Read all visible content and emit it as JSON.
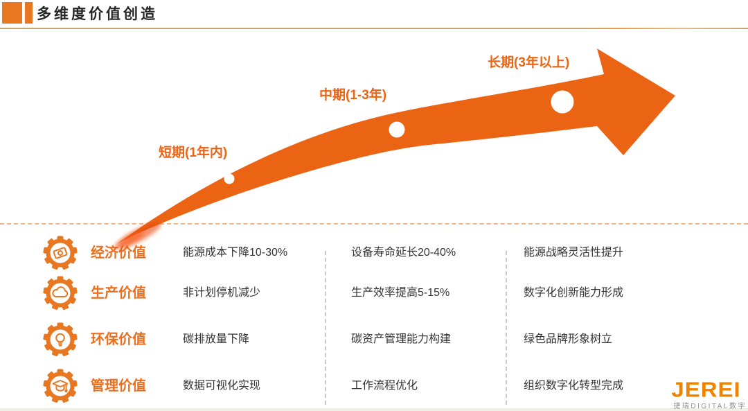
{
  "header": {
    "title": "多维度价值创造"
  },
  "timeline": {
    "stages": [
      {
        "label": "短期(1年内)"
      },
      {
        "label": "中期(1-3年)"
      },
      {
        "label": "长期(3年以上)"
      }
    ]
  },
  "values_table": {
    "rows": [
      {
        "icon": "money-gear-icon",
        "label": "经济价值",
        "values": [
          "能源成本下降10-30%",
          "设备寿命延长20-40%",
          "能源战略灵活性提升"
        ]
      },
      {
        "icon": "cloud-gear-icon",
        "label": "生产价值",
        "values": [
          "非计划停机减少",
          "生产效率提高5-15%",
          "数字化创新能力形成"
        ]
      },
      {
        "icon": "lightbulb-gear-icon",
        "label": "环保价值",
        "values": [
          "碳排放量下降",
          "碳资产管理能力构建",
          "绿色品牌形象树立"
        ]
      },
      {
        "icon": "graduation-cap-gear-icon",
        "label": "管理价值",
        "values": [
          "数据可视化实现",
          "工作流程优化",
          "组织数字化转型完成"
        ]
      }
    ]
  },
  "logo": {
    "wordmark": "JEREI",
    "subtext": "捷瑞DIGITAL数字"
  },
  "colors": {
    "accent_orange": "#eb6414",
    "icon_orange": "#e87722",
    "label_orange": "#ec6f1e",
    "rule_tan": "#c7a269",
    "dashed_peach": "#f2b58b",
    "divider_gray": "#c9c9c9",
    "text_dark": "#333333",
    "logo_orange": "#f08300"
  }
}
